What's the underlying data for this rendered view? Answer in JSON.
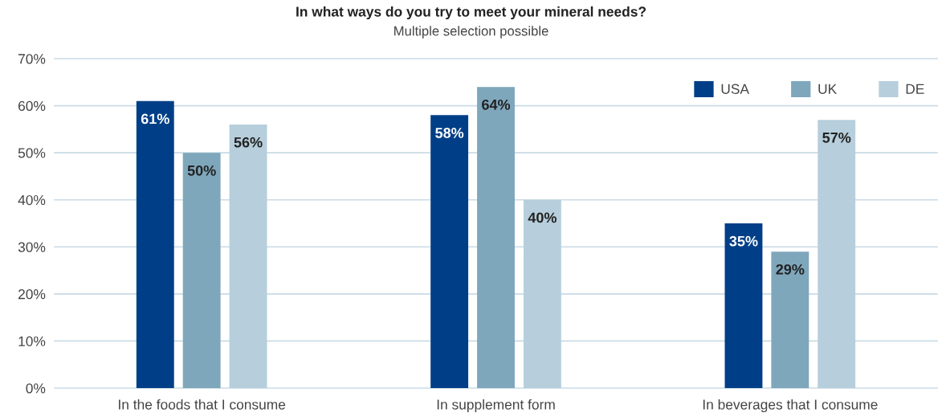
{
  "chart_data": {
    "type": "bar",
    "title": "In what ways do you try to meet your mineral needs?",
    "subtitle": "Multiple selection possible",
    "categories": [
      "In the foods that I consume",
      "In supplement form",
      "In beverages that I consume"
    ],
    "series": [
      {
        "name": "USA",
        "color": "#003f87",
        "values": [
          61,
          58,
          35
        ],
        "value_labels": [
          "61%",
          "58%",
          "35%"
        ]
      },
      {
        "name": "UK",
        "color": "#7fa7bc",
        "values": [
          50,
          64,
          29
        ],
        "value_labels": [
          "50%",
          "64%",
          "29%"
        ]
      },
      {
        "name": "DE",
        "color": "#b7cfdc",
        "values": [
          56,
          40,
          57
        ],
        "value_labels": [
          "56%",
          "40%",
          "57%"
        ]
      }
    ],
    "ylim": [
      0,
      70
    ],
    "yticks": [
      {
        "value": 0,
        "label": "0%"
      },
      {
        "value": 10,
        "label": "10%"
      },
      {
        "value": 20,
        "label": "20%"
      },
      {
        "value": 30,
        "label": "30%"
      },
      {
        "value": 40,
        "label": "40%"
      },
      {
        "value": 50,
        "label": "50%"
      },
      {
        "value": 60,
        "label": "60%"
      },
      {
        "value": 70,
        "label": "70%"
      }
    ],
    "grid": "y",
    "legend": "top right"
  }
}
